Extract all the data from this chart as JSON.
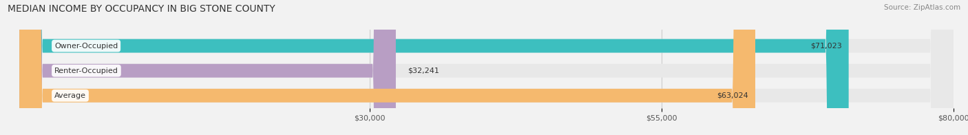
{
  "title": "MEDIAN INCOME BY OCCUPANCY IN BIG STONE COUNTY",
  "source": "Source: ZipAtlas.com",
  "categories": [
    "Owner-Occupied",
    "Renter-Occupied",
    "Average"
  ],
  "values": [
    71023,
    32241,
    63024
  ],
  "bar_colors": [
    "#3dbfbf",
    "#b89ec4",
    "#f5b96e"
  ],
  "value_labels": [
    "$71,023",
    "$32,241",
    "$63,024"
  ],
  "xlim": [
    0,
    80000
  ],
  "xticks": [
    30000,
    55000,
    80000
  ],
  "xtick_labels": [
    "$30,000",
    "$55,000",
    "$80,000"
  ],
  "title_fontsize": 10,
  "bar_height": 0.55,
  "background_color": "#f2f2f2",
  "bar_bg_color": "#e8e8e8"
}
